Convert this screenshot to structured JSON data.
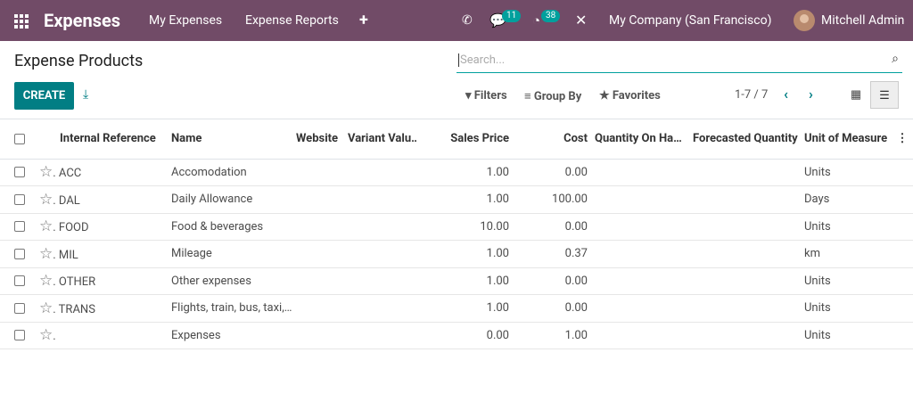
{
  "navbar": {
    "app": "Expenses",
    "menus": [
      "My Expenses",
      "Expense Reports"
    ],
    "messages_badge": 11,
    "activities_badge": 38,
    "company": "My Company (San Francisco)",
    "user": "Mitchell Admin"
  },
  "control_panel": {
    "title": "Expense Products",
    "search_placeholder": "Search...",
    "create": "CREATE",
    "filters": "Filters",
    "group_by": "Group By",
    "favorites": "Favorites",
    "pager": "1-7 / 7"
  },
  "table": {
    "columns": [
      "Internal Reference",
      "Name",
      "Website",
      "Variant Valu…",
      "Sales Price",
      "Cost",
      "Quantity On Ha…",
      "Forecasted Quantity",
      "Unit of Measure"
    ],
    "rows": [
      {
        "ref": "ACC",
        "name": "Accomodation",
        "sales_price": "1.00",
        "cost": "0.00",
        "uom": "Units"
      },
      {
        "ref": "DAL",
        "name": "Daily Allowance",
        "sales_price": "1.00",
        "cost": "100.00",
        "uom": "Days"
      },
      {
        "ref": "FOOD",
        "name": "Food & beverages",
        "sales_price": "10.00",
        "cost": "0.00",
        "uom": "Units"
      },
      {
        "ref": "MIL",
        "name": "Mileage",
        "sales_price": "1.00",
        "cost": "0.37",
        "uom": "km"
      },
      {
        "ref": "OTHER",
        "name": "Other expenses",
        "sales_price": "1.00",
        "cost": "0.00",
        "uom": "Units"
      },
      {
        "ref": "TRANS",
        "name": "Flights, train, bus, taxi,…",
        "sales_price": "1.00",
        "cost": "0.00",
        "uom": "Units"
      },
      {
        "name": "Expenses",
        "sales_price": "0.00",
        "cost": "1.00",
        "uom": "Units"
      }
    ]
  }
}
